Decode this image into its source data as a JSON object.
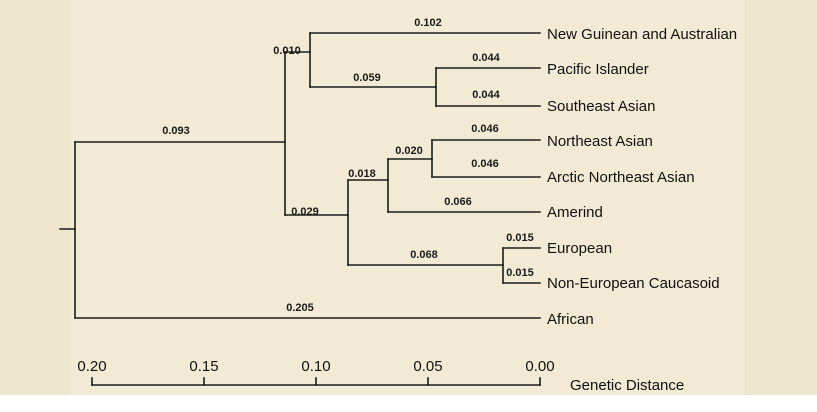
{
  "tree": {
    "leaves": [
      {
        "id": "ng",
        "label": "New Guinean and Australian"
      },
      {
        "id": "pi",
        "label": "Pacific Islander"
      },
      {
        "id": "sea",
        "label": "Southeast Asian"
      },
      {
        "id": "nea",
        "label": "Northeast Asian"
      },
      {
        "id": "anea",
        "label": "Arctic Northeast Asian"
      },
      {
        "id": "am",
        "label": "Amerind"
      },
      {
        "id": "eu",
        "label": "European"
      },
      {
        "id": "neu",
        "label": "Non-European Caucasoid"
      },
      {
        "id": "af",
        "label": "African"
      }
    ],
    "branch_lengths": {
      "root_to_nonafrican": "0.093",
      "nonafrican_to_australasian": "0.010",
      "australasian_to_ng": "0.102",
      "australasian_to_sea_pi": "0.059",
      "sea_pi_to_pi": "0.044",
      "sea_pi_to_sea": "0.044",
      "nonafrican_to_eurasian": "0.029",
      "eurasian_to_asian_am": "0.018",
      "asian_am_to_ne": "0.020",
      "ne_to_nea": "0.046",
      "ne_to_anea": "0.046",
      "asian_am_to_am": "0.066",
      "eurasian_to_cauc": "0.068",
      "cauc_to_eu": "0.015",
      "cauc_to_neu": "0.015",
      "root_to_af": "0.205"
    }
  },
  "axis": {
    "title": "Genetic Distance",
    "ticks": [
      "0.20",
      "0.15",
      "0.10",
      "0.05",
      "0.00"
    ]
  }
}
